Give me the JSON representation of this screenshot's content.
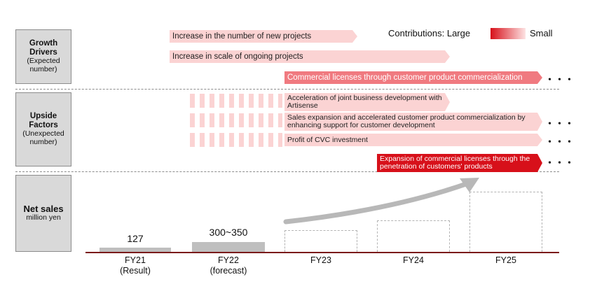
{
  "legend": {
    "prefix": "Contributions:",
    "large": "Large",
    "small": "Small"
  },
  "side": {
    "growth": {
      "title": "Growth Drivers",
      "sub": "(Expected number)"
    },
    "upside": {
      "title": "Upside Factors",
      "sub": "(Unexpected number)"
    },
    "sales": {
      "title": "Net sales",
      "sub": "million yen"
    }
  },
  "growth_drivers": [
    "Increase in the number of new projects",
    "Increase in scale of ongoing projects",
    "Commercial licenses through customer product commercialization"
  ],
  "upside_factors": [
    "Acceleration of joint business development with Artisense",
    "Sales expansion and accelerated customer product commercialization by enhancing support for customer development",
    "Profit of CVC investment",
    "Expansion of commercial licenses through the penetration of customers' products"
  ],
  "continuation": "・・・",
  "chart_data": {
    "type": "bar",
    "categories": [
      "FY21 (Result)",
      "FY22 (forecast)",
      "FY23",
      "FY24",
      "FY25"
    ],
    "category_lines": [
      [
        "FY21",
        "(Result)"
      ],
      [
        "FY22",
        "(forecast)"
      ],
      [
        "FY23"
      ],
      [
        "FY24"
      ],
      [
        "FY25"
      ]
    ],
    "value_labels": [
      "127",
      "300~350",
      "",
      "",
      ""
    ],
    "values": [
      127,
      325,
      null,
      null,
      null
    ],
    "ylabel": "Net sales million yen",
    "trend_arrow": "increasing"
  }
}
